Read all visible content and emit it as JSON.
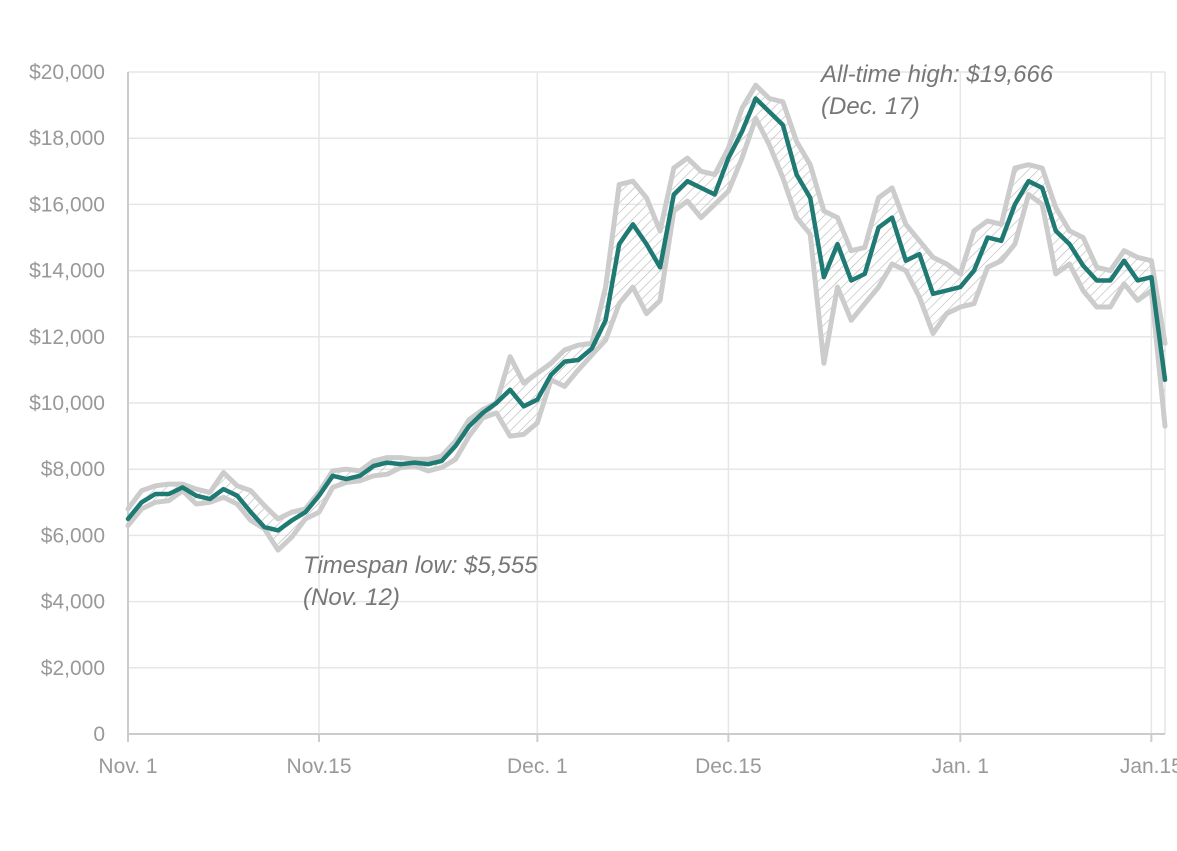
{
  "chart_data": {
    "type": "line",
    "title": "",
    "xlabel": "",
    "ylabel": "",
    "x_tick_labels": [
      "Nov. 1",
      "Nov.15",
      "Dec. 1",
      "Dec.15",
      "Jan. 1",
      "Jan.15"
    ],
    "x_tick_dates": [
      "2017-11-01",
      "2017-11-15",
      "2017-12-01",
      "2017-12-15",
      "2018-01-01",
      "2018-01-15"
    ],
    "y_tick_labels": [
      "0",
      "$2,000",
      "$4,000",
      "$6,000",
      "$8,000",
      "$10,000",
      "$12,000",
      "$14,000",
      "$16,000",
      "$18,000",
      "$20,000"
    ],
    "ylim": [
      0,
      20000
    ],
    "xlim": [
      "2017-11-01",
      "2018-01-16"
    ],
    "grid": true,
    "colors": {
      "close": "#1f7a73",
      "range": "#cccccc",
      "hatch": "#bbbbbb"
    },
    "series": [
      {
        "role": "close",
        "values": [
          [
            "2017-11-01",
            6500
          ],
          [
            "2017-11-02",
            7000
          ],
          [
            "2017-11-03",
            7250
          ],
          [
            "2017-11-04",
            7250
          ],
          [
            "2017-11-05",
            7450
          ],
          [
            "2017-11-06",
            7200
          ],
          [
            "2017-11-07",
            7100
          ],
          [
            "2017-11-08",
            7400
          ],
          [
            "2017-11-09",
            7200
          ],
          [
            "2017-11-10",
            6700
          ],
          [
            "2017-11-11",
            6250
          ],
          [
            "2017-11-12",
            6150
          ],
          [
            "2017-11-13",
            6450
          ],
          [
            "2017-11-14",
            6700
          ],
          [
            "2017-11-15",
            7200
          ],
          [
            "2017-11-16",
            7800
          ],
          [
            "2017-11-17",
            7700
          ],
          [
            "2017-11-18",
            7800
          ],
          [
            "2017-11-19",
            8100
          ],
          [
            "2017-11-20",
            8200
          ],
          [
            "2017-11-21",
            8150
          ],
          [
            "2017-11-22",
            8200
          ],
          [
            "2017-11-23",
            8150
          ],
          [
            "2017-11-24",
            8250
          ],
          [
            "2017-11-25",
            8700
          ],
          [
            "2017-11-26",
            9300
          ],
          [
            "2017-11-27",
            9700
          ],
          [
            "2017-11-28",
            10000
          ],
          [
            "2017-11-29",
            10400
          ],
          [
            "2017-11-30",
            9900
          ],
          [
            "2017-12-01",
            10100
          ],
          [
            "2017-12-02",
            10850
          ],
          [
            "2017-12-03",
            11250
          ],
          [
            "2017-12-04",
            11300
          ],
          [
            "2017-12-05",
            11650
          ],
          [
            "2017-12-06",
            12500
          ],
          [
            "2017-12-07",
            14800
          ],
          [
            "2017-12-08",
            15400
          ],
          [
            "2017-12-09",
            14800
          ],
          [
            "2017-12-10",
            14100
          ],
          [
            "2017-12-11",
            16300
          ],
          [
            "2017-12-12",
            16700
          ],
          [
            "2017-12-13",
            16500
          ],
          [
            "2017-12-14",
            16300
          ],
          [
            "2017-12-15",
            17400
          ],
          [
            "2017-12-16",
            18200
          ],
          [
            "2017-12-17",
            19200
          ],
          [
            "2017-12-18",
            18800
          ],
          [
            "2017-12-19",
            18400
          ],
          [
            "2017-12-20",
            16900
          ],
          [
            "2017-12-21",
            16200
          ],
          [
            "2017-12-22",
            13800
          ],
          [
            "2017-12-23",
            14800
          ],
          [
            "2017-12-24",
            13700
          ],
          [
            "2017-12-25",
            13900
          ],
          [
            "2017-12-26",
            15300
          ],
          [
            "2017-12-27",
            15600
          ],
          [
            "2017-12-28",
            14300
          ],
          [
            "2017-12-29",
            14500
          ],
          [
            "2017-12-30",
            13300
          ],
          [
            "2017-12-31",
            13400
          ],
          [
            "2018-01-01",
            13500
          ],
          [
            "2018-01-02",
            14000
          ],
          [
            "2018-01-03",
            15000
          ],
          [
            "2018-01-04",
            14900
          ],
          [
            "2018-01-05",
            16000
          ],
          [
            "2018-01-06",
            16700
          ],
          [
            "2018-01-07",
            16500
          ],
          [
            "2018-01-08",
            15200
          ],
          [
            "2018-01-09",
            14800
          ],
          [
            "2018-01-10",
            14150
          ],
          [
            "2018-01-11",
            13700
          ],
          [
            "2018-01-12",
            13700
          ],
          [
            "2018-01-13",
            14300
          ],
          [
            "2018-01-14",
            13700
          ],
          [
            "2018-01-15",
            13800
          ],
          [
            "2018-01-16",
            10700
          ]
        ]
      },
      {
        "role": "high",
        "values": [
          [
            "2017-11-01",
            6800
          ],
          [
            "2017-11-02",
            7350
          ],
          [
            "2017-11-03",
            7500
          ],
          [
            "2017-11-04",
            7550
          ],
          [
            "2017-11-05",
            7550
          ],
          [
            "2017-11-06",
            7400
          ],
          [
            "2017-11-07",
            7300
          ],
          [
            "2017-11-08",
            7900
          ],
          [
            "2017-11-09",
            7500
          ],
          [
            "2017-11-10",
            7350
          ],
          [
            "2017-11-11",
            6900
          ],
          [
            "2017-11-12",
            6500
          ],
          [
            "2017-11-13",
            6700
          ],
          [
            "2017-11-14",
            6800
          ],
          [
            "2017-11-15",
            7300
          ],
          [
            "2017-11-16",
            7950
          ],
          [
            "2017-11-17",
            8000
          ],
          [
            "2017-11-18",
            7950
          ],
          [
            "2017-11-19",
            8250
          ],
          [
            "2017-11-20",
            8350
          ],
          [
            "2017-11-21",
            8350
          ],
          [
            "2017-11-22",
            8300
          ],
          [
            "2017-11-23",
            8300
          ],
          [
            "2017-11-24",
            8400
          ],
          [
            "2017-11-25",
            8850
          ],
          [
            "2017-11-26",
            9500
          ],
          [
            "2017-11-27",
            9800
          ],
          [
            "2017-11-28",
            10000
          ],
          [
            "2017-11-29",
            11400
          ],
          [
            "2017-11-30",
            10600
          ],
          [
            "2017-12-01",
            10900
          ],
          [
            "2017-12-02",
            11200
          ],
          [
            "2017-12-03",
            11600
          ],
          [
            "2017-12-04",
            11750
          ],
          [
            "2017-12-05",
            11800
          ],
          [
            "2017-12-06",
            13500
          ],
          [
            "2017-12-07",
            16600
          ],
          [
            "2017-12-08",
            16700
          ],
          [
            "2017-12-09",
            16200
          ],
          [
            "2017-12-10",
            15200
          ],
          [
            "2017-12-11",
            17100
          ],
          [
            "2017-12-12",
            17400
          ],
          [
            "2017-12-13",
            17000
          ],
          [
            "2017-12-14",
            16900
          ],
          [
            "2017-12-15",
            17700
          ],
          [
            "2017-12-16",
            18900
          ],
          [
            "2017-12-17",
            19600
          ],
          [
            "2017-12-18",
            19200
          ],
          [
            "2017-12-19",
            19100
          ],
          [
            "2017-12-20",
            17900
          ],
          [
            "2017-12-21",
            17200
          ],
          [
            "2017-12-22",
            15800
          ],
          [
            "2017-12-23",
            15600
          ],
          [
            "2017-12-24",
            14600
          ],
          [
            "2017-12-25",
            14700
          ],
          [
            "2017-12-26",
            16200
          ],
          [
            "2017-12-27",
            16500
          ],
          [
            "2017-12-28",
            15400
          ],
          [
            "2017-12-29",
            14900
          ],
          [
            "2017-12-30",
            14400
          ],
          [
            "2017-12-31",
            14200
          ],
          [
            "2018-01-01",
            13900
          ],
          [
            "2018-01-02",
            15200
          ],
          [
            "2018-01-03",
            15500
          ],
          [
            "2018-01-04",
            15400
          ],
          [
            "2018-01-05",
            17100
          ],
          [
            "2018-01-06",
            17200
          ],
          [
            "2018-01-07",
            17100
          ],
          [
            "2018-01-08",
            15900
          ],
          [
            "2018-01-09",
            15200
          ],
          [
            "2018-01-10",
            15000
          ],
          [
            "2018-01-11",
            14100
          ],
          [
            "2018-01-12",
            14000
          ],
          [
            "2018-01-13",
            14600
          ],
          [
            "2018-01-14",
            14400
          ],
          [
            "2018-01-15",
            14300
          ],
          [
            "2018-01-16",
            11800
          ]
        ]
      },
      {
        "role": "low",
        "values": [
          [
            "2017-11-01",
            6300
          ],
          [
            "2017-11-02",
            6800
          ],
          [
            "2017-11-03",
            7000
          ],
          [
            "2017-11-04",
            7050
          ],
          [
            "2017-11-05",
            7350
          ],
          [
            "2017-11-06",
            6950
          ],
          [
            "2017-11-07",
            7000
          ],
          [
            "2017-11-08",
            7150
          ],
          [
            "2017-11-09",
            6950
          ],
          [
            "2017-11-10",
            6450
          ],
          [
            "2017-11-11",
            6200
          ],
          [
            "2017-11-12",
            5555
          ],
          [
            "2017-11-13",
            5950
          ],
          [
            "2017-11-14",
            6500
          ],
          [
            "2017-11-15",
            6700
          ],
          [
            "2017-11-16",
            7450
          ],
          [
            "2017-11-17",
            7600
          ],
          [
            "2017-11-18",
            7650
          ],
          [
            "2017-11-19",
            7800
          ],
          [
            "2017-11-20",
            7850
          ],
          [
            "2017-11-21",
            8050
          ],
          [
            "2017-11-22",
            8100
          ],
          [
            "2017-11-23",
            7950
          ],
          [
            "2017-11-24",
            8050
          ],
          [
            "2017-11-25",
            8300
          ],
          [
            "2017-11-26",
            9000
          ],
          [
            "2017-11-27",
            9550
          ],
          [
            "2017-11-28",
            9700
          ],
          [
            "2017-11-29",
            9000
          ],
          [
            "2017-11-30",
            9050
          ],
          [
            "2017-12-01",
            9400
          ],
          [
            "2017-12-02",
            10700
          ],
          [
            "2017-12-03",
            10500
          ],
          [
            "2017-12-04",
            11000
          ],
          [
            "2017-12-05",
            11450
          ],
          [
            "2017-12-06",
            11900
          ],
          [
            "2017-12-07",
            13000
          ],
          [
            "2017-12-08",
            13500
          ],
          [
            "2017-12-09",
            12700
          ],
          [
            "2017-12-10",
            13100
          ],
          [
            "2017-12-11",
            15800
          ],
          [
            "2017-12-12",
            16100
          ],
          [
            "2017-12-13",
            15600
          ],
          [
            "2017-12-14",
            16000
          ],
          [
            "2017-12-15",
            16400
          ],
          [
            "2017-12-16",
            17400
          ],
          [
            "2017-12-17",
            18600
          ],
          [
            "2017-12-18",
            17800
          ],
          [
            "2017-12-19",
            16800
          ],
          [
            "2017-12-20",
            15600
          ],
          [
            "2017-12-21",
            15100
          ],
          [
            "2017-12-22",
            11200
          ],
          [
            "2017-12-23",
            13500
          ],
          [
            "2017-12-24",
            12500
          ],
          [
            "2017-12-25",
            13000
          ],
          [
            "2017-12-26",
            13500
          ],
          [
            "2017-12-27",
            14200
          ],
          [
            "2017-12-28",
            14000
          ],
          [
            "2017-12-29",
            13200
          ],
          [
            "2017-12-30",
            12100
          ],
          [
            "2017-12-31",
            12700
          ],
          [
            "2018-01-01",
            12900
          ],
          [
            "2018-01-02",
            13000
          ],
          [
            "2018-01-03",
            14100
          ],
          [
            "2018-01-04",
            14300
          ],
          [
            "2018-01-05",
            14800
          ],
          [
            "2018-01-06",
            16300
          ],
          [
            "2018-01-07",
            16000
          ],
          [
            "2018-01-08",
            13900
          ],
          [
            "2018-01-09",
            14200
          ],
          [
            "2018-01-10",
            13400
          ],
          [
            "2018-01-11",
            12900
          ],
          [
            "2018-01-12",
            12900
          ],
          [
            "2018-01-13",
            13600
          ],
          [
            "2018-01-14",
            13100
          ],
          [
            "2018-01-15",
            13400
          ],
          [
            "2018-01-16",
            9300
          ]
        ]
      }
    ],
    "annotations": [
      {
        "lines": [
          "All-time high: $19,666",
          "(Dec. 17)"
        ],
        "date": "2017-12-17",
        "value": 19666
      },
      {
        "lines": [
          "Timespan low: $5,555",
          "(Nov. 12)"
        ],
        "date": "2017-11-12",
        "value": 5555
      }
    ]
  }
}
